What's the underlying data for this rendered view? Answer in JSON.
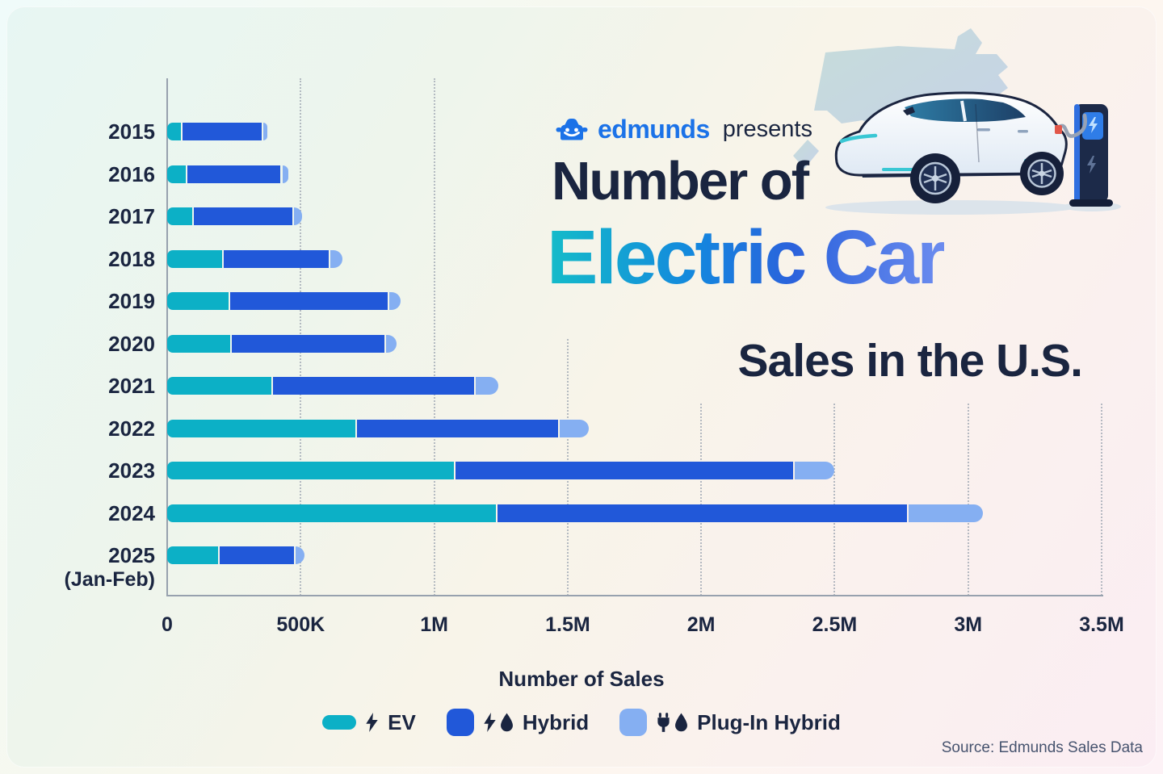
{
  "header": {
    "brand": "edmunds",
    "presents_label": "presents",
    "title_line1": "Number of",
    "title_line2": "Electric Car",
    "title_line3": "Sales in the U.S."
  },
  "colors": {
    "ev_teal": "#0cb0c6",
    "hybrid_blue": "#2158d9",
    "plugin_light_blue": "#85aff2",
    "navy_text": "#1a2540",
    "edmunds_blue": "#1b72e8",
    "grid_gray": "#a9b0ba",
    "axis_gray": "#97a1ae",
    "source_gray": "#46536e",
    "title_gradient": [
      "#14bcc9",
      "#1486de",
      "#2b62dc",
      "#6c8cef"
    ]
  },
  "chart_data": {
    "type": "bar",
    "orientation": "horizontal",
    "stacked": true,
    "title": "Number of Electric Car Sales in the U.S.",
    "xlabel": "Number of Sales",
    "xlim": [
      0,
      3500000
    ],
    "grid": true,
    "legend_position": "bottom",
    "categories": [
      "2015",
      "2016",
      "2017",
      "2018",
      "2019",
      "2020",
      "2021",
      "2022",
      "2023",
      "2024",
      "2025"
    ],
    "category_notes": [
      "",
      "",
      "",
      "",
      "",
      "",
      "",
      "",
      "",
      "",
      "(Jan-Feb)"
    ],
    "series": [
      {
        "name": "EV",
        "color_key": "ev_teal",
        "values": [
          50000,
          70000,
          95000,
          205000,
          230000,
          235000,
          390000,
          705000,
          1075000,
          1230000,
          190000
        ]
      },
      {
        "name": "Hybrid",
        "color_key": "hybrid_blue",
        "values": [
          305000,
          355000,
          375000,
          400000,
          595000,
          580000,
          760000,
          760000,
          1270000,
          1540000,
          285000
        ]
      },
      {
        "name": "Plug-In Hybrid",
        "color_key": "plugin_light_blue",
        "values": [
          20000,
          30000,
          35000,
          50000,
          50000,
          45000,
          90000,
          115000,
          155000,
          285000,
          40000
        ]
      }
    ],
    "xticks": [
      {
        "value": 0,
        "label": "0"
      },
      {
        "value": 500000,
        "label": "500K"
      },
      {
        "value": 1000000,
        "label": "1M"
      },
      {
        "value": 1500000,
        "label": "1.5M"
      },
      {
        "value": 2000000,
        "label": "2M"
      },
      {
        "value": 2500000,
        "label": "2.5M"
      },
      {
        "value": 3000000,
        "label": "3M"
      },
      {
        "value": 3500000,
        "label": "3.5M"
      }
    ]
  },
  "legend": {
    "items": [
      {
        "label": "EV",
        "swatch": "pill",
        "color_key": "ev_teal",
        "icons": [
          "bolt"
        ]
      },
      {
        "label": "Hybrid",
        "swatch": "square",
        "color_key": "hybrid_blue",
        "icons": [
          "bolt",
          "droplet"
        ]
      },
      {
        "label": "Plug-In Hybrid",
        "swatch": "square",
        "color_key": "plugin_light_blue",
        "icons": [
          "plug",
          "droplet"
        ]
      }
    ]
  },
  "source": "Source: Edmunds Sales Data"
}
